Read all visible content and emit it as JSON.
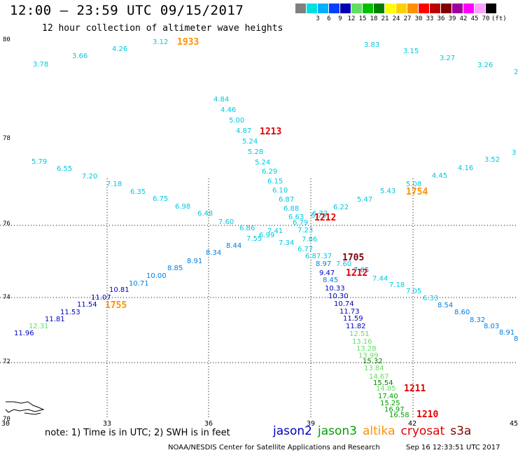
{
  "title": "12:00 – 23:59 UTC 09/15/2017",
  "subtitle": "12 hour collection of altimeter wave heights",
  "scale": {
    "unit": "(ft)",
    "bins": [
      {
        "label": "",
        "color": "#808080"
      },
      {
        "label": "3",
        "color": "#00e0e0"
      },
      {
        "label": "6",
        "color": "#00b0ff"
      },
      {
        "label": "9",
        "color": "#0040ff"
      },
      {
        "label": "12",
        "color": "#0000b0"
      },
      {
        "label": "15",
        "color": "#60e060"
      },
      {
        "label": "18",
        "color": "#00c000"
      },
      {
        "label": "21",
        "color": "#008000"
      },
      {
        "label": "24",
        "color": "#ffff00"
      },
      {
        "label": "27",
        "color": "#ffd000"
      },
      {
        "label": "30",
        "color": "#ff9000"
      },
      {
        "label": "33",
        "color": "#ff0000"
      },
      {
        "label": "36",
        "color": "#c00000"
      },
      {
        "label": "39",
        "color": "#800000"
      },
      {
        "label": "42",
        "color": "#a000a0"
      },
      {
        "label": "45",
        "color": "#ff00ff"
      },
      {
        "label": "70",
        "color": "#ffa0ff"
      },
      {
        "label": "",
        "color": "#000000"
      }
    ]
  },
  "axes": {
    "lon_labels": [
      "30",
      "33",
      "36",
      "39",
      "42",
      "45"
    ],
    "lat_labels": [
      "80",
      "78",
      "76",
      "74",
      "72",
      "70"
    ]
  },
  "colors": {
    "jason2": "#0000c0",
    "jason3": "#00a000",
    "altika": "#ff9000",
    "cryosat": "#e00000",
    "s3a": "#800000",
    "wave_low": "#00c8e0",
    "wave_mid": "#0080e0",
    "wave_blue": "#0000c0",
    "wave_lightgreen": "#60e060",
    "wave_green": "#00a000",
    "wave_darkgreen": "#008000"
  },
  "points": [
    {
      "v": "3.78",
      "c": "wave_low"
    },
    {
      "v": "3.66",
      "c": "wave_low"
    },
    {
      "v": "4.26",
      "c": "wave_low"
    },
    {
      "v": "3.12",
      "c": "wave_low"
    },
    {
      "v": "3.83",
      "c": "wave_low"
    },
    {
      "v": "3.15",
      "c": "wave_low"
    },
    {
      "v": "3.27",
      "c": "wave_low"
    },
    {
      "v": "3.26",
      "c": "wave_low"
    },
    {
      "v": "2",
      "c": "wave_low"
    },
    {
      "v": "4.84",
      "c": "wave_low"
    },
    {
      "v": "4.46",
      "c": "wave_low"
    },
    {
      "v": "5.00",
      "c": "wave_low"
    },
    {
      "v": "4.87",
      "c": "wave_low"
    },
    {
      "v": "5.24",
      "c": "wave_low"
    },
    {
      "v": "5.28",
      "c": "wave_low"
    },
    {
      "v": "5.24",
      "c": "wave_low"
    },
    {
      "v": "6.29",
      "c": "wave_low"
    },
    {
      "v": "6.15",
      "c": "wave_low"
    },
    {
      "v": "6.10",
      "c": "wave_low"
    },
    {
      "v": "6.87",
      "c": "wave_low"
    },
    {
      "v": "6.88",
      "c": "wave_low"
    },
    {
      "v": "6.63",
      "c": "wave_low"
    },
    {
      "v": "6.73",
      "c": "wave_low"
    },
    {
      "v": "6.79",
      "c": "wave_low"
    },
    {
      "v": "5.79",
      "c": "wave_low"
    },
    {
      "v": "6.55",
      "c": "wave_low"
    },
    {
      "v": "7.20",
      "c": "wave_low"
    },
    {
      "v": "6.35",
      "c": "wave_low"
    },
    {
      "v": "6.75",
      "c": "wave_low"
    },
    {
      "v": "6.98",
      "c": "wave_low"
    },
    {
      "v": "6.48",
      "c": "wave_low"
    },
    {
      "v": "7.60",
      "c": "wave_low"
    },
    {
      "v": "6.86",
      "c": "wave_low"
    },
    {
      "v": "6.99",
      "c": "wave_low"
    },
    {
      "v": "7.41",
      "c": "wave_low"
    },
    {
      "v": "7.55",
      "c": "wave_low"
    },
    {
      "v": "7.34",
      "c": "wave_low"
    },
    {
      "v": "7.23",
      "c": "wave_low"
    },
    {
      "v": "7.86",
      "c": "wave_low"
    },
    {
      "v": "6.77",
      "c": "wave_low"
    },
    {
      "v": "6.8",
      "c": "wave_low"
    },
    {
      "v": "7.37",
      "c": "wave_low"
    },
    {
      "v": "7.18",
      "c": "wave_low"
    },
    {
      "v": "3.52",
      "c": "wave_low"
    },
    {
      "v": "4.16",
      "c": "wave_low"
    },
    {
      "v": "4.45",
      "c": "wave_low"
    },
    {
      "v": "5.08",
      "c": "wave_low"
    },
    {
      "v": "5.43",
      "c": "wave_low"
    },
    {
      "v": "5.47",
      "c": "wave_low"
    },
    {
      "v": "6.22",
      "c": "wave_low"
    },
    {
      "v": "6.72",
      "c": "wave_low"
    },
    {
      "v": "3",
      "c": "wave_low"
    },
    {
      "v": "7.44",
      "c": "wave_low"
    },
    {
      "v": "7.18",
      "c": "wave_low"
    },
    {
      "v": "7.05",
      "c": "wave_low"
    },
    {
      "v": "6.33",
      "c": "wave_low"
    },
    {
      "v": "7.60",
      "c": "wave_low"
    },
    {
      "v": "8.97",
      "c": "wave_mid"
    },
    {
      "v": "7.65",
      "c": "wave_mid"
    },
    {
      "v": "8.34",
      "c": "wave_mid"
    },
    {
      "v": "8.44",
      "c": "wave_mid"
    },
    {
      "v": "8.91",
      "c": "wave_mid"
    },
    {
      "v": "8.85",
      "c": "wave_mid"
    },
    {
      "v": "10.00",
      "c": "wave_mid"
    },
    {
      "v": "10.71",
      "c": "wave_mid"
    },
    {
      "v": "8.45",
      "c": "wave_mid"
    },
    {
      "v": "8.54",
      "c": "wave_mid"
    },
    {
      "v": "8.60",
      "c": "wave_mid"
    },
    {
      "v": "8.32",
      "c": "wave_mid"
    },
    {
      "v": "8.03",
      "c": "wave_mid"
    },
    {
      "v": "8.91",
      "c": "wave_mid"
    },
    {
      "v": "8",
      "c": "wave_mid"
    },
    {
      "v": "10.81",
      "c": "wave_blue"
    },
    {
      "v": "11.07",
      "c": "wave_blue"
    },
    {
      "v": "11.54",
      "c": "wave_blue"
    },
    {
      "v": "11.53",
      "c": "wave_blue"
    },
    {
      "v": "11.81",
      "c": "wave_blue"
    },
    {
      "v": "11.96",
      "c": "wave_blue"
    },
    {
      "v": "9.47",
      "c": "wave_blue"
    },
    {
      "v": "10.33",
      "c": "wave_blue"
    },
    {
      "v": "10.30",
      "c": "wave_blue"
    },
    {
      "v": "10.74",
      "c": "wave_blue"
    },
    {
      "v": "11.73",
      "c": "wave_blue"
    },
    {
      "v": "11.59",
      "c": "wave_blue"
    },
    {
      "v": "11.82",
      "c": "wave_blue"
    },
    {
      "v": "12.31",
      "c": "wave_lightgreen"
    },
    {
      "v": "12.51",
      "c": "wave_lightgreen"
    },
    {
      "v": "13.16",
      "c": "wave_lightgreen"
    },
    {
      "v": "13.28",
      "c": "wave_lightgreen"
    },
    {
      "v": "13.99",
      "c": "wave_lightgreen"
    },
    {
      "v": "13.84",
      "c": "wave_lightgreen"
    },
    {
      "v": "14.67",
      "c": "wave_lightgreen"
    },
    {
      "v": "14.85",
      "c": "wave_lightgreen"
    },
    {
      "v": "15.32",
      "c": "wave_darkgreen"
    },
    {
      "v": "15.54",
      "c": "wave_darkgreen"
    },
    {
      "v": "17.40",
      "c": "wave_green"
    },
    {
      "v": "15.25",
      "c": "wave_green"
    },
    {
      "v": "16.97",
      "c": "wave_green"
    },
    {
      "v": "16.58",
      "c": "wave_green"
    }
  ],
  "times": [
    {
      "v": "1933",
      "c": "altika"
    },
    {
      "v": "1213",
      "c": "cryosat"
    },
    {
      "v": "1754",
      "c": "altika"
    },
    {
      "v": "1212",
      "c": "cryosat"
    },
    {
      "v": "1705",
      "c": "s3a"
    },
    {
      "v": "1212",
      "c": "cryosat"
    },
    {
      "v": "1755",
      "c": "altika"
    },
    {
      "v": "1211",
      "c": "cryosat"
    },
    {
      "v": "1210",
      "c": "cryosat"
    }
  ],
  "note": "note: 1) Time is in UTC; 2) SWH is in feet",
  "legend": [
    {
      "label": "jason2",
      "color": "#0000c0"
    },
    {
      "label": "jason3",
      "color": "#00a000"
    },
    {
      "label": "altika",
      "color": "#ff9000"
    },
    {
      "label": "cryosat",
      "color": "#e00000"
    },
    {
      "label": "s3a",
      "color": "#800000"
    }
  ],
  "credit": "NOAA/NESDIS Center for Satellite Applications and Research",
  "stamp": "Sep 16 12:33:51 UTC 2017"
}
